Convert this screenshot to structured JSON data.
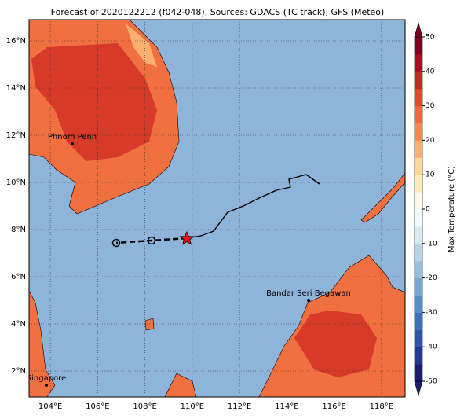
{
  "title": "Forecast of 2020122212 (f042-048), Sources: GDACS (TC track), GFS (Meteo)",
  "map": {
    "xlim": [
      103.1,
      119.0
    ],
    "ylim": [
      0.9,
      16.9
    ],
    "xticks": [
      {
        "value": 104,
        "label": "104°E"
      },
      {
        "value": 106,
        "label": "106°E"
      },
      {
        "value": 108,
        "label": "108°E"
      },
      {
        "value": 110,
        "label": "110°E"
      },
      {
        "value": 112,
        "label": "112°E"
      },
      {
        "value": 114,
        "label": "114°E"
      },
      {
        "value": 116,
        "label": "116°E"
      },
      {
        "value": 118,
        "label": "118°E"
      }
    ],
    "yticks": [
      {
        "value": 2,
        "label": "2°N"
      },
      {
        "value": 4,
        "label": "4°N"
      },
      {
        "value": 6,
        "label": "6°N"
      },
      {
        "value": 8,
        "label": "8°N"
      },
      {
        "value": 10,
        "label": "10°N"
      },
      {
        "value": 12,
        "label": "12°N"
      },
      {
        "value": 14,
        "label": "14°N"
      },
      {
        "value": 16,
        "label": "16°N"
      }
    ],
    "cities": [
      "Phnom Penh",
      "Bandar Seri Begawan",
      "Singapore"
    ]
  },
  "colorbar": {
    "label": "Max Temperature (°C)",
    "lim": [
      -50,
      50
    ],
    "ticks": [
      -50,
      -40,
      -30,
      -20,
      -10,
      0,
      10,
      20,
      30,
      40,
      50
    ],
    "colors": [
      "#1c1c70",
      "#233a92",
      "#2f56a8",
      "#3f70b8",
      "#5a8cc4",
      "#77a6d2",
      "#96bedd",
      "#b6d6e8",
      "#d6ecf4",
      "#f2fbfd",
      "#fdfbe6",
      "#fdedb8",
      "#fdd79a",
      "#fcb070",
      "#f58a4e",
      "#ee6a38",
      "#de4a2c",
      "#c82a22",
      "#a8101e",
      "#7e0020"
    ]
  }
}
